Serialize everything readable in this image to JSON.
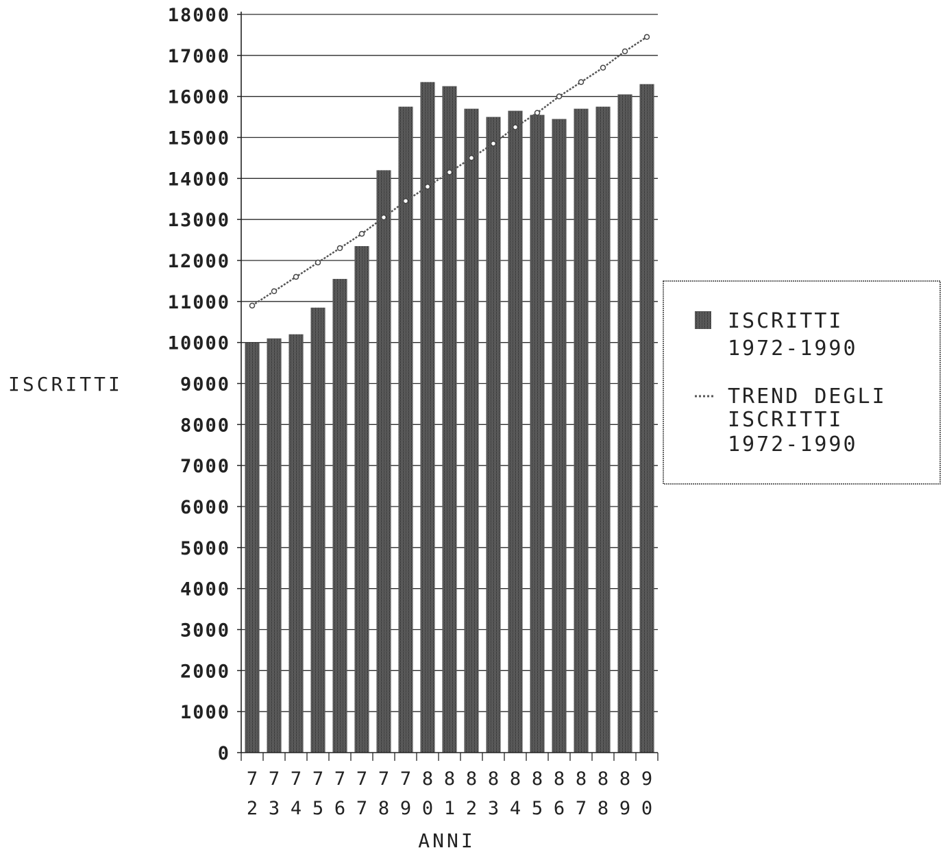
{
  "chart_data": {
    "type": "bar",
    "title": "",
    "xlabel": "ANNI",
    "ylabel": "ISCRITTI",
    "ylim": [
      0,
      18000
    ],
    "yticks": [
      0,
      1000,
      2000,
      3000,
      4000,
      5000,
      6000,
      7000,
      8000,
      9000,
      10000,
      11000,
      12000,
      13000,
      14000,
      15000,
      16000,
      17000,
      18000
    ],
    "grid": true,
    "legend_position": "right",
    "categories": [
      "72",
      "73",
      "74",
      "75",
      "76",
      "77",
      "78",
      "79",
      "80",
      "81",
      "82",
      "83",
      "84",
      "85",
      "86",
      "87",
      "88",
      "89",
      "90"
    ],
    "series": [
      {
        "name": "ISCRITTI 1972-1990",
        "kind": "bar",
        "color": "#5a5a5a",
        "values": [
          10000,
          10100,
          10200,
          10850,
          11550,
          12350,
          14200,
          15750,
          16350,
          16250,
          15700,
          15500,
          15650,
          15550,
          15450,
          15700,
          15750,
          16050,
          16300
        ]
      },
      {
        "name": "TREND DEGLI ISCRITTI 1972-1990",
        "kind": "line",
        "color": "#555555",
        "values": [
          10900,
          11250,
          11600,
          11950,
          12300,
          12650,
          13050,
          13450,
          13800,
          14150,
          14500,
          14850,
          15250,
          15600,
          16000,
          16350,
          16700,
          17100,
          17450
        ]
      }
    ],
    "legend": [
      {
        "label_lines": [
          "ISCRITTI",
          "1972-1990"
        ],
        "marker": "bar"
      },
      {
        "label_lines": [
          "TREND DEGLI",
          "ISCRITTI",
          "1972-1990"
        ],
        "marker": "line"
      }
    ]
  }
}
